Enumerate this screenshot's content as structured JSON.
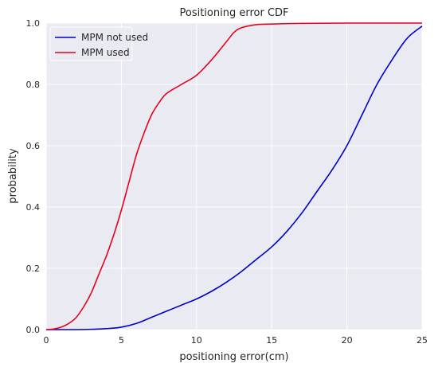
{
  "chart_data": {
    "type": "line",
    "title": "Positioning error CDF",
    "xlabel": "positioning error(cm)",
    "ylabel": "probability",
    "xlim": [
      0,
      25
    ],
    "ylim": [
      0,
      1
    ],
    "xticks": [
      0,
      5,
      10,
      15,
      20,
      25
    ],
    "yticks": [
      0.0,
      0.2,
      0.4,
      0.6,
      0.8,
      1.0
    ],
    "xtick_labels": [
      "0",
      "5",
      "10",
      "15",
      "20",
      "25"
    ],
    "ytick_labels": [
      "0.0",
      "0.2",
      "0.4",
      "0.6",
      "0.8",
      "1.0"
    ],
    "grid": true,
    "background": "#eaeaf2",
    "legend_position": "top-left",
    "series": [
      {
        "name": "MPM not used",
        "color": "#0000cc",
        "x": [
          0,
          1,
          2,
          3,
          4,
          5,
          6,
          7,
          8,
          9,
          10,
          11,
          12,
          13,
          14,
          15,
          16,
          17,
          18,
          19,
          20,
          21,
          22,
          23,
          24,
          25
        ],
        "y": [
          0.0,
          0.0,
          0.0,
          0.001,
          0.003,
          0.008,
          0.02,
          0.04,
          0.06,
          0.08,
          0.1,
          0.125,
          0.155,
          0.19,
          0.23,
          0.27,
          0.32,
          0.38,
          0.45,
          0.52,
          0.6,
          0.7,
          0.8,
          0.88,
          0.95,
          0.99
        ]
      },
      {
        "name": "MPM used",
        "color": "#e8001c",
        "x": [
          0,
          0.5,
          1,
          1.5,
          2,
          2.5,
          3,
          3.5,
          4,
          4.5,
          5,
          5.5,
          6,
          6.5,
          7,
          7.5,
          8,
          9,
          10,
          11,
          12,
          12.5,
          13,
          14,
          15,
          17,
          20,
          25
        ],
        "y": [
          0.0,
          0.002,
          0.008,
          0.02,
          0.04,
          0.075,
          0.12,
          0.18,
          0.24,
          0.31,
          0.39,
          0.48,
          0.57,
          0.64,
          0.7,
          0.74,
          0.77,
          0.8,
          0.83,
          0.88,
          0.94,
          0.97,
          0.985,
          0.995,
          0.997,
          0.999,
          1.0,
          1.0
        ]
      }
    ]
  }
}
